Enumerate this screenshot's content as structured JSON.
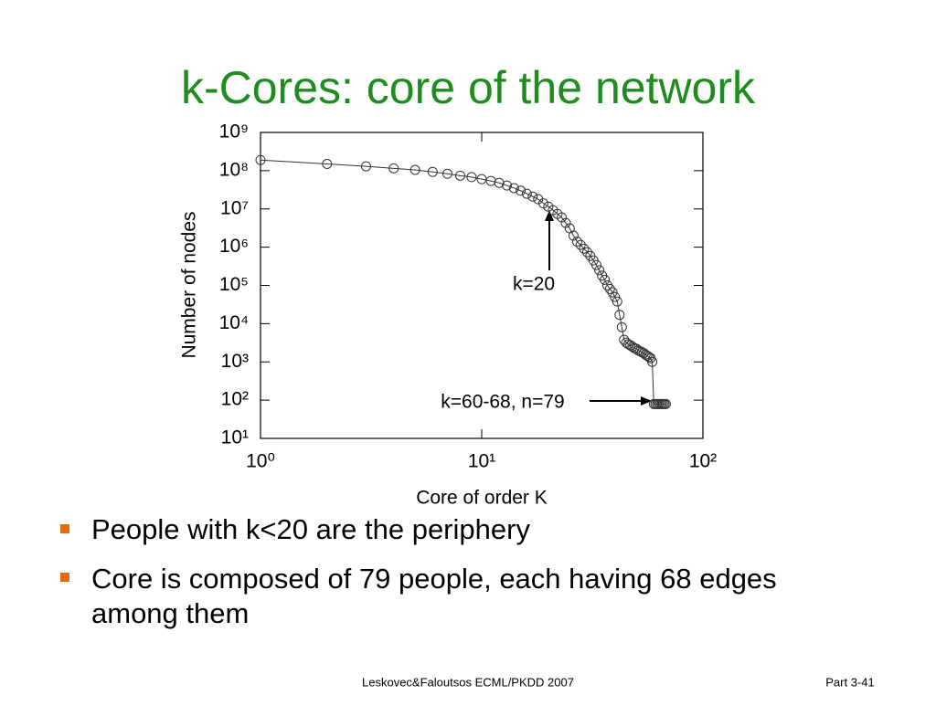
{
  "title": "k-Cores: core of the network",
  "bullets": [
    "People with k<20 are the periphery",
    "Core is composed of 79 people, each having 68 edges among them"
  ],
  "footer": {
    "left": "Leskovec&Faloutsos ECML/PKDD 2007",
    "right": "Part 3-41"
  },
  "chart_data": {
    "type": "scatter",
    "x_label": "Core of order K",
    "y_label": "Number of nodes",
    "annotations": [
      "k=20",
      "k=60-68, n=79"
    ],
    "x_scale": "log",
    "y_scale": "log",
    "line": true,
    "color": "#333333",
    "xlim": [
      1,
      100
    ],
    "xticks": [
      {
        "value": 1,
        "label": "10⁰"
      },
      {
        "value": 10,
        "label": "10¹"
      },
      {
        "value": 100,
        "label": "10²"
      }
    ],
    "ylim": [
      10,
      1000000000
    ],
    "yticks": [
      {
        "value": 10,
        "label": "10¹"
      },
      {
        "value": 100,
        "label": "10²"
      },
      {
        "value": 1000,
        "label": "10³"
      },
      {
        "value": 10000,
        "label": "10⁴"
      },
      {
        "value": 100000,
        "label": "10⁵"
      },
      {
        "value": 1000000,
        "label": "10⁶"
      },
      {
        "value": 10000000,
        "label": "10⁷"
      },
      {
        "value": 100000000,
        "label": "10⁸"
      },
      {
        "value": 1000000000,
        "label": "10⁹"
      }
    ],
    "x": [
      1,
      2,
      3,
      4,
      5,
      6,
      7,
      8,
      9,
      10,
      11,
      12,
      13,
      14,
      15,
      16,
      17,
      18,
      19,
      20,
      21,
      22,
      23,
      24,
      25,
      26,
      27,
      28,
      29,
      30,
      31,
      32,
      33,
      34,
      35,
      36,
      37,
      38,
      39,
      40,
      41,
      42,
      43,
      44,
      45,
      46,
      47,
      48,
      49,
      50,
      51,
      52,
      53,
      54,
      55,
      56,
      57,
      58,
      59,
      60,
      61,
      62,
      63,
      64,
      65,
      66,
      67,
      68
    ],
    "values": [
      190000000,
      150000000,
      130000000,
      115000000,
      105000000,
      93000000,
      83000000,
      74000000,
      68000000,
      60000000,
      54000000,
      48000000,
      41000000,
      35000000,
      30000000,
      25000000,
      21000000,
      18000000,
      14000000,
      11500000,
      9300000,
      7400000,
      6000000,
      4300000,
      3100000,
      2000000,
      1400000,
      1150000,
      910000,
      740000,
      590000,
      450000,
      340000,
      250000,
      180000,
      140000,
      100000,
      81000,
      66000,
      50000,
      38000,
      17000,
      8100,
      3800,
      3200,
      2900,
      2700,
      2500,
      2300,
      2200,
      2000,
      1900,
      1800,
      1700,
      1550,
      1450,
      1350,
      1250,
      1000,
      79,
      79,
      79,
      79,
      79,
      79,
      79,
      79,
      79
    ]
  }
}
